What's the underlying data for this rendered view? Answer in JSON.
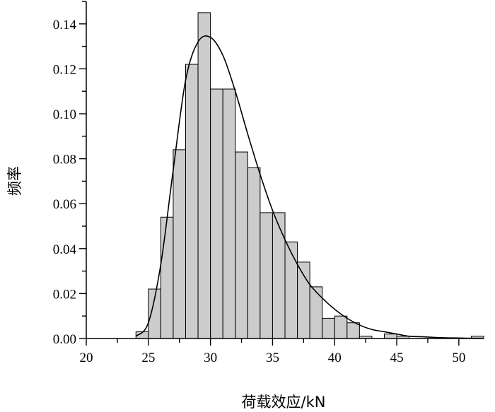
{
  "chart_data": {
    "type": "bar",
    "title": "",
    "xlabel": "荷载效应/kN",
    "ylabel": "频率",
    "xlim": [
      20,
      52
    ],
    "ylim": [
      0,
      0.15
    ],
    "grid": false,
    "bin_width": 1,
    "x_ticks": [
      "20",
      "25",
      "30",
      "35",
      "40",
      "45",
      "50"
    ],
    "y_ticks": [
      "0.00",
      "0.02",
      "0.04",
      "0.06",
      "0.08",
      "0.10",
      "0.12",
      "0.14"
    ],
    "bars": [
      {
        "x0": 24,
        "x1": 25,
        "value": 0.003
      },
      {
        "x0": 25,
        "x1": 26,
        "value": 0.022
      },
      {
        "x0": 26,
        "x1": 27,
        "value": 0.054
      },
      {
        "x0": 27,
        "x1": 28,
        "value": 0.084
      },
      {
        "x0": 28,
        "x1": 29,
        "value": 0.122
      },
      {
        "x0": 29,
        "x1": 30,
        "value": 0.145
      },
      {
        "x0": 30,
        "x1": 31,
        "value": 0.111
      },
      {
        "x0": 31,
        "x1": 32,
        "value": 0.111
      },
      {
        "x0": 32,
        "x1": 33,
        "value": 0.083
      },
      {
        "x0": 33,
        "x1": 34,
        "value": 0.076
      },
      {
        "x0": 34,
        "x1": 35,
        "value": 0.056
      },
      {
        "x0": 35,
        "x1": 36,
        "value": 0.056
      },
      {
        "x0": 36,
        "x1": 37,
        "value": 0.043
      },
      {
        "x0": 37,
        "x1": 38,
        "value": 0.034
      },
      {
        "x0": 38,
        "x1": 39,
        "value": 0.023
      },
      {
        "x0": 39,
        "x1": 40,
        "value": 0.009
      },
      {
        "x0": 40,
        "x1": 41,
        "value": 0.01
      },
      {
        "x0": 41,
        "x1": 42,
        "value": 0.007
      },
      {
        "x0": 42,
        "x1": 43,
        "value": 0.001
      },
      {
        "x0": 43,
        "x1": 44,
        "value": 0.0
      },
      {
        "x0": 44,
        "x1": 45,
        "value": 0.002
      },
      {
        "x0": 45,
        "x1": 46,
        "value": 0.001
      },
      {
        "x0": 46,
        "x1": 47,
        "value": 0.0
      },
      {
        "x0": 47,
        "x1": 48,
        "value": 0.0
      },
      {
        "x0": 48,
        "x1": 49,
        "value": 0.0
      },
      {
        "x0": 49,
        "x1": 50,
        "value": 0.0
      },
      {
        "x0": 50,
        "x1": 51,
        "value": 0.0
      },
      {
        "x0": 51,
        "x1": 52,
        "value": 0.001
      }
    ],
    "curve": {
      "x": [
        24,
        25,
        26,
        27,
        28,
        29,
        30,
        31,
        32,
        33,
        34,
        35,
        36,
        37,
        38,
        39,
        40,
        41,
        42,
        43,
        44,
        45,
        46,
        47,
        48,
        49,
        50,
        51,
        52
      ],
      "y": [
        0.001,
        0.007,
        0.033,
        0.075,
        0.115,
        0.132,
        0.134,
        0.126,
        0.11,
        0.091,
        0.073,
        0.057,
        0.044,
        0.033,
        0.024,
        0.018,
        0.013,
        0.009,
        0.006,
        0.004,
        0.003,
        0.002,
        0.001,
        0.0008,
        0.0005,
        0.0003,
        0.0002,
        0.0001,
        0.0001
      ]
    },
    "colors": {
      "bar_fill": "#cccccc",
      "bar_stroke": "#000000",
      "curve": "#000000",
      "axis": "#000000"
    }
  }
}
